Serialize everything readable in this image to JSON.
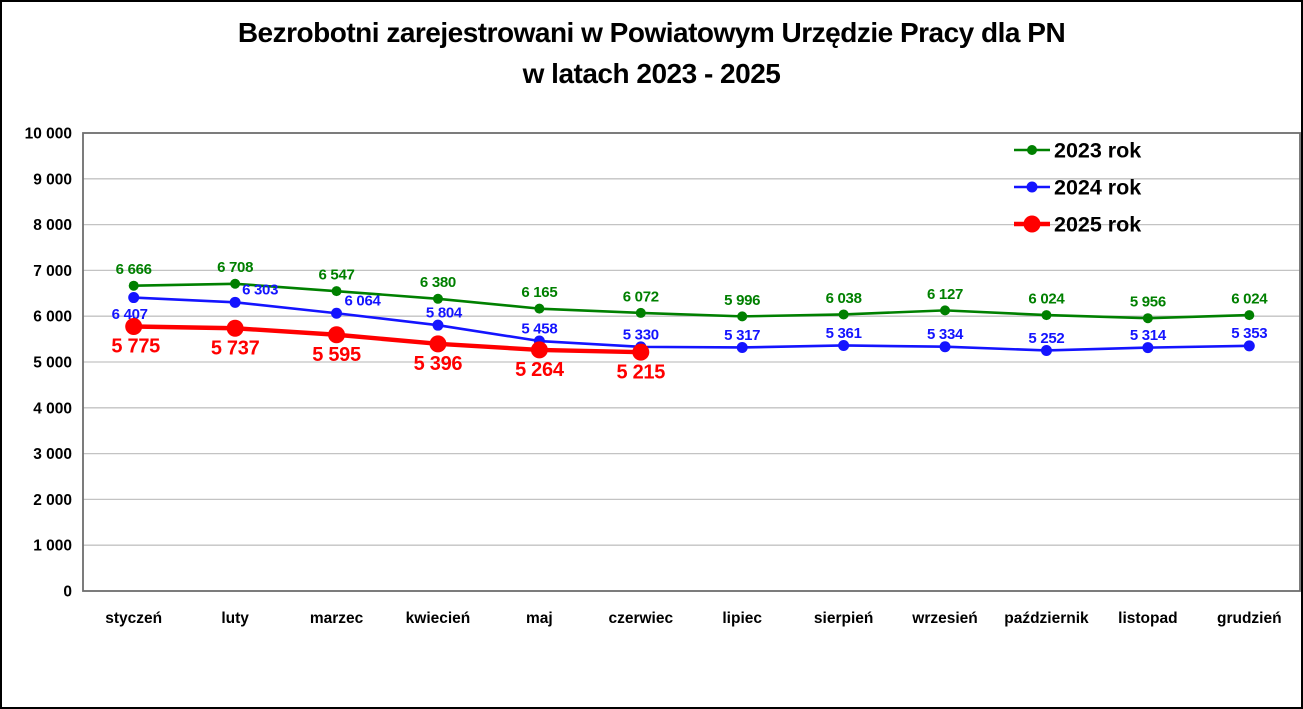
{
  "figure": {
    "title_line1": "Bezrobotni zarejestrowani w Powiatowym Urzędzie Pracy dla PN",
    "title_line2": "w latach 2023 - 2025"
  },
  "chart_data": {
    "type": "line",
    "title": "Bezrobotni zarejestrowani w Powiatowym Urzędzie Pracy dla PN w latach 2023 - 2025",
    "xlabel": "",
    "ylabel": "",
    "categories": [
      "styczeń",
      "luty",
      "marzec",
      "kwiecień",
      "maj",
      "czerwiec",
      "lipiec",
      "sierpień",
      "wrzesień",
      "październik",
      "listopad",
      "grudzień"
    ],
    "y_axis": {
      "min": 0,
      "max": 10000,
      "step": 1000,
      "tick_labels": [
        "0",
        "1 000",
        "2 000",
        "3 000",
        "4 000",
        "5 000",
        "6 000",
        "7 000",
        "8 000",
        "9 000",
        "10 000"
      ],
      "grid": true
    },
    "legend": {
      "position": "inside-top-right",
      "entries": [
        "2023 rok",
        "2024 rok",
        "2025 rok"
      ]
    },
    "colors": {
      "grid": "#c3c3c3",
      "frame": "#6e6e6e",
      "text": "#000000",
      "series_2023": "#008000",
      "series_2024": "#1414ff",
      "series_2025": "#ff0000"
    },
    "series": [
      {
        "name": "2023 rok",
        "color": "#008000",
        "values": [
          6666,
          6708,
          6547,
          6380,
          6165,
          6072,
          5996,
          6038,
          6127,
          6024,
          5956,
          6024
        ],
        "labels": [
          "6 666",
          "6 708",
          "6 547",
          "6 380",
          "6 165",
          "6 072",
          "5 996",
          "6 038",
          "6 127",
          "6 024",
          "5 956",
          "6 024"
        ],
        "label_dx": [
          0,
          0,
          0,
          0,
          0,
          0,
          0,
          0,
          0,
          0,
          0,
          0
        ],
        "label_dy": [
          -17,
          -17,
          -17,
          -17,
          -17,
          -17,
          -17,
          -17,
          -17,
          -17,
          -17,
          -17
        ],
        "label_size": 15,
        "marker_radius": 5,
        "line_width": 2.6
      },
      {
        "name": "2024 rok",
        "color": "#1414ff",
        "values": [
          6407,
          6303,
          6064,
          5804,
          5458,
          5330,
          5317,
          5361,
          5334,
          5252,
          5314,
          5353
        ],
        "labels": [
          "6 407",
          "6 303",
          "6 064",
          "5 804",
          "5 458",
          "5 330",
          "5 317",
          "5 361",
          "5 334",
          "5 252",
          "5 314",
          "5 353"
        ],
        "label_dx": [
          -4,
          25,
          26,
          6,
          0,
          0,
          0,
          0,
          0,
          0,
          0,
          0
        ],
        "label_dy": [
          16,
          -13,
          -13,
          -13,
          -13,
          -13,
          -13,
          -13,
          -13,
          -13,
          -13,
          -13
        ],
        "label_size": 15,
        "marker_radius": 5.5,
        "line_width": 2.6
      },
      {
        "name": "2025 rok",
        "color": "#ff0000",
        "values": [
          5775,
          5737,
          5595,
          5396,
          5264,
          5215
        ],
        "labels": [
          "5 775",
          "5 737",
          "5 595",
          "5 396",
          "5 264",
          "5 215"
        ],
        "label_dx": [
          2,
          0,
          0,
          0,
          0,
          0
        ],
        "label_dy": [
          19,
          19,
          19,
          19,
          19,
          19
        ],
        "label_size": 20,
        "marker_radius": 8.5,
        "line_width": 4.4
      }
    ]
  }
}
